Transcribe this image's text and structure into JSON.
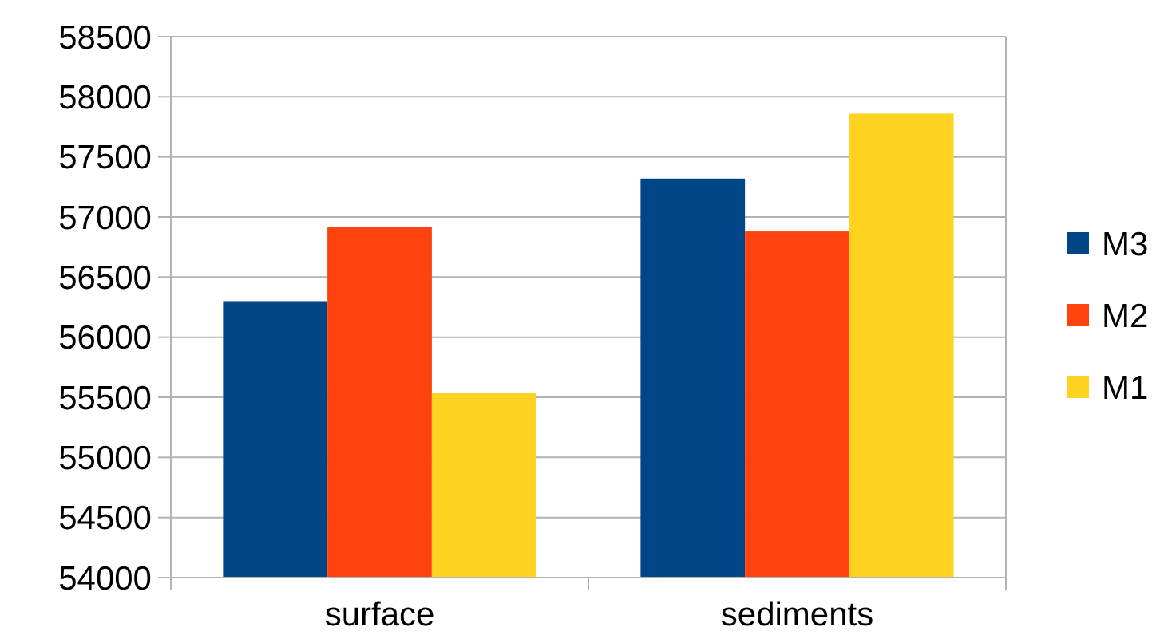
{
  "chart_data": {
    "type": "bar",
    "categories": [
      "surface",
      "sediments"
    ],
    "series": [
      {
        "name": "M3",
        "color": "#004586",
        "values": [
          56300,
          57320
        ]
      },
      {
        "name": "M2",
        "color": "#ff420e",
        "values": [
          56920,
          56880
        ]
      },
      {
        "name": "M1",
        "color": "#ffd320",
        "values": [
          55540,
          57860
        ]
      }
    ],
    "ylim": [
      54000,
      58500
    ],
    "yticks": [
      54000,
      54500,
      55000,
      55500,
      56000,
      56500,
      57000,
      57500,
      58000,
      58500
    ],
    "grid": "y",
    "legend": "right"
  }
}
